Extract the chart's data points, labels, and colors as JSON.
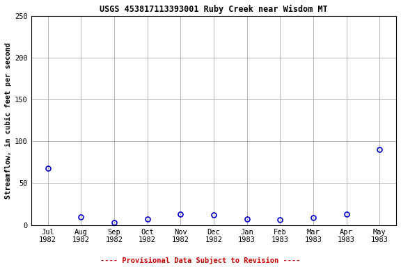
{
  "title": "USGS 453817113393001 Ruby Creek near Wisdom MT",
  "ylabel": "Streamflow, in cubic feet per second",
  "xlabel_labels": [
    "Jul\n1982",
    "Aug\n1982",
    "Sep\n1982",
    "Oct\n1982",
    "Nov\n1982",
    "Dec\n1982",
    "Jan\n1983",
    "Feb\n1983",
    "Mar\n1983",
    "Apr\n1983",
    "May\n1983"
  ],
  "x_positions": [
    0,
    1,
    2,
    3,
    4,
    5,
    6,
    7,
    8,
    9,
    10
  ],
  "y_values": [
    68,
    10,
    3,
    7,
    13,
    12,
    7,
    6,
    9,
    13,
    90
  ],
  "ylim": [
    0,
    250
  ],
  "yticks": [
    0,
    50,
    100,
    150,
    200,
    250
  ],
  "xlim": [
    -0.5,
    10.5
  ],
  "marker_color": "#0000cc",
  "marker_size": 5,
  "marker_style": "o",
  "marker_facecolor": "none",
  "marker_edgewidth": 1.2,
  "grid_color": "#aaaaaa",
  "background_color": "#ffffff",
  "footnote": "---- Provisional Data Subject to Revision ----",
  "footnote_color": "#cc0000",
  "title_fontsize": 8.5,
  "ylabel_fontsize": 7.5,
  "tick_fontsize": 7.5,
  "footnote_fontsize": 7.5
}
